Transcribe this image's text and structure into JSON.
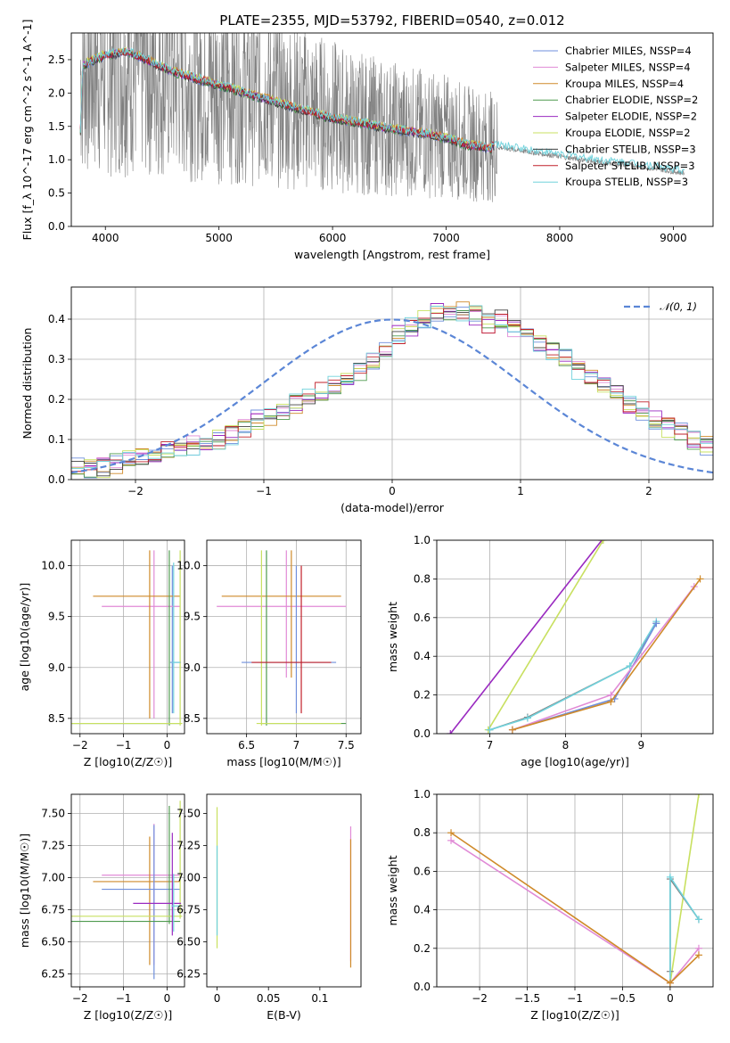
{
  "figure": {
    "title": "PLATE=2355, MJD=53792, FIBERID=0540, z=0.012"
  },
  "colors": {
    "observed": "#808080",
    "models": [
      "#6f8fdc",
      "#e08ad6",
      "#cf8a2a",
      "#4e9a4e",
      "#9a2ac0",
      "#c8e060",
      "#404040",
      "#c0202a",
      "#70d2dc"
    ],
    "normal": "#5b86d6"
  },
  "chart_data": [
    {
      "id": "spectrum",
      "type": "line",
      "xlabel": "wavelength [Angstrom, rest frame]",
      "ylabel": "Flux [f_λ 10^-17 erg cm^-2 s^-1 A^-1]",
      "xlim": [
        3700,
        9350
      ],
      "ylim": [
        0,
        2.9
      ],
      "xticks": [
        4000,
        5000,
        6000,
        7000,
        8000,
        9000
      ],
      "yticks": [
        0.0,
        0.5,
        1.0,
        1.5,
        2.0,
        2.5
      ],
      "observed_spectrum": {
        "color": "#808080",
        "x": [
          3780,
          4000,
          4200,
          4400,
          4600,
          4800,
          5000,
          5200,
          5400,
          5600,
          5800,
          6000,
          6200,
          6400,
          6600,
          6800,
          7000,
          7200,
          7400,
          7600,
          7800,
          8000,
          8200,
          8400,
          8600,
          8800,
          9000,
          9100
        ],
        "y": [
          2.3,
          2.4,
          2.45,
          2.35,
          2.25,
          2.2,
          2.1,
          2.05,
          1.95,
          1.85,
          1.75,
          1.65,
          1.55,
          1.5,
          1.45,
          1.4,
          1.35,
          1.25,
          1.2,
          1.15,
          1.1,
          1.05,
          1.0,
          0.95,
          0.92,
          0.88,
          0.82,
          0.8
        ]
      },
      "model_continuum": {
        "x": [
          3780,
          3800,
          4000,
          4200,
          4400,
          4600,
          4800,
          5000,
          5200,
          5400,
          5600,
          5800,
          6000,
          6200,
          6400,
          6600,
          6800,
          7000,
          7200,
          7400
        ],
        "y": [
          1.4,
          2.4,
          2.55,
          2.6,
          2.45,
          2.3,
          2.2,
          2.1,
          2.0,
          1.9,
          1.8,
          1.7,
          1.6,
          1.55,
          1.48,
          1.42,
          1.38,
          1.3,
          1.2,
          1.15
        ]
      },
      "legend": [
        {
          "name": "Chabrier MILES, N_SSP=4"
        },
        {
          "name": "Salpeter MILES, N_SSP=4"
        },
        {
          "name": "Kroupa MILES, N_SSP=4"
        },
        {
          "name": "Chabrier ELODIE, N_SSP=2"
        },
        {
          "name": "Salpeter ELODIE, N_SSP=2"
        },
        {
          "name": "Kroupa ELODIE, N_SSP=2"
        },
        {
          "name": "Chabrier STELIB, N_SSP=3"
        },
        {
          "name": "Salpeter STELIB, N_SSP=3"
        },
        {
          "name": "Kroupa STELIB, N_SSP=3"
        }
      ],
      "legend_position": "top-right",
      "grid": false
    },
    {
      "id": "residuals",
      "type": "histogram",
      "xlabel": "(data-model)/error",
      "ylabel": "Normed distribution",
      "xlim": [
        -2.5,
        2.5
      ],
      "ylim": [
        0,
        0.48
      ],
      "xticks": [
        -2,
        -1,
        0,
        1,
        2
      ],
      "yticks": [
        0.0,
        0.1,
        0.2,
        0.3,
        0.4
      ],
      "grid": true,
      "bin_width": 0.1,
      "bin_start": -2.5,
      "normal_curve": {
        "mu": 0,
        "sigma": 1,
        "label": "𝒩(0, 1)"
      },
      "legend_position": "top-right",
      "base_values": [
        0.03,
        0.025,
        0.03,
        0.04,
        0.05,
        0.055,
        0.06,
        0.07,
        0.075,
        0.085,
        0.09,
        0.1,
        0.11,
        0.13,
        0.15,
        0.16,
        0.17,
        0.19,
        0.21,
        0.22,
        0.235,
        0.25,
        0.27,
        0.3,
        0.33,
        0.36,
        0.38,
        0.4,
        0.42,
        0.41,
        0.42,
        0.41,
        0.39,
        0.4,
        0.38,
        0.36,
        0.34,
        0.32,
        0.3,
        0.27,
        0.25,
        0.23,
        0.21,
        0.19,
        0.17,
        0.15,
        0.13,
        0.12,
        0.1,
        0.085
      ]
    },
    {
      "id": "age-vs-Z",
      "type": "errorbar",
      "xlabel": "Z [log10(Z/Z☉)]",
      "ylabel": "age  [log10(age/yr)]",
      "xlim": [
        -2.2,
        0.4
      ],
      "ylim": [
        8.35,
        10.25
      ],
      "xticks": [
        -2,
        -1,
        0
      ],
      "yticks": [
        8.5,
        9.0,
        9.5,
        10.0
      ],
      "grid": true,
      "points": [
        {
          "x": 0.12,
          "y": 9.05,
          "xerr": [
            0.05,
            0.2
          ],
          "yerr": [
            0.5,
            0.95
          ],
          "color": "#6f8fdc"
        },
        {
          "x": -0.3,
          "y": 9.6,
          "xerr": [
            1.2,
            0.6
          ],
          "yerr": [
            1.1,
            0.55
          ],
          "color": "#e08ad6"
        },
        {
          "x": -0.4,
          "y": 9.7,
          "xerr": [
            1.3,
            0.7
          ],
          "yerr": [
            1.2,
            0.45
          ],
          "color": "#cf8a2a"
        },
        {
          "x": 0.05,
          "y": 8.45,
          "xerr": [
            2.3,
            0.25
          ],
          "yerr": [
            0.02,
            1.7
          ],
          "color": "#4e9a4e"
        },
        {
          "x": 0.3,
          "y": 8.45,
          "xerr": [
            2.5,
            0.05
          ],
          "yerr": [
            0.02,
            1.7
          ],
          "color": "#c8e060"
        },
        {
          "x": 0.15,
          "y": 9.05,
          "xerr": [
            0.05,
            0.15
          ],
          "yerr": [
            0.5,
            0.98
          ],
          "color": "#70d2dc"
        }
      ]
    },
    {
      "id": "age-vs-mass",
      "type": "errorbar",
      "xlabel": "mass [log10(M/M☉)]",
      "ylabel": "",
      "xlim": [
        6.1,
        7.65
      ],
      "ylim": [
        8.35,
        10.25
      ],
      "xticks": [
        6.5,
        7.0,
        7.5
      ],
      "yticks": [
        8.5,
        9.0,
        9.5,
        10.0
      ],
      "grid": true,
      "points": [
        {
          "x": 6.9,
          "y": 9.6,
          "xerr": [
            0.7,
            0.6
          ],
          "yerr": [
            0.7,
            0.55
          ],
          "color": "#e08ad6"
        },
        {
          "x": 6.95,
          "y": 9.7,
          "xerr": [
            0.7,
            0.5
          ],
          "yerr": [
            0.8,
            0.45
          ],
          "color": "#cf8a2a"
        },
        {
          "x": 7.0,
          "y": 9.05,
          "xerr": [
            0.55,
            0.4
          ],
          "yerr": [
            0.5,
            0.95
          ],
          "color": "#6f8fdc"
        },
        {
          "x": 6.7,
          "y": 8.45,
          "xerr": [
            0.05,
            0.8
          ],
          "yerr": [
            0.02,
            1.7
          ],
          "color": "#4e9a4e"
        },
        {
          "x": 6.65,
          "y": 8.45,
          "xerr": [
            0.05,
            0.8
          ],
          "yerr": [
            0.02,
            1.7
          ],
          "color": "#c8e060"
        },
        {
          "x": 7.05,
          "y": 9.05,
          "xerr": [
            0.5,
            0.3
          ],
          "yerr": [
            0.5,
            0.95
          ],
          "color": "#c0202a"
        }
      ]
    },
    {
      "id": "massweight-vs-age",
      "type": "line",
      "xlabel": "age  [log10(age/yr)]",
      "ylabel": "mass weight",
      "xlim": [
        6.3,
        9.95
      ],
      "ylim": [
        0,
        1.0
      ],
      "xticks": [
        7,
        8,
        9
      ],
      "yticks": [
        0.0,
        0.2,
        0.4,
        0.6,
        0.8,
        1.0
      ],
      "grid": true,
      "series": [
        {
          "color": "#9a2ac0",
          "x": [
            6.48,
            8.48
          ],
          "y": [
            0.0,
            1.0
          ]
        },
        {
          "color": "#c8e060",
          "x": [
            6.98,
            8.5
          ],
          "y": [
            0.02,
            1.0
          ]
        },
        {
          "color": "#808080",
          "x": [
            7.0,
            7.5,
            8.85,
            9.2
          ],
          "y": [
            0.02,
            0.085,
            0.35,
            0.57
          ]
        },
        {
          "color": "#70d2dc",
          "x": [
            7.0,
            7.5,
            8.85,
            9.2
          ],
          "y": [
            0.02,
            0.08,
            0.35,
            0.58
          ]
        },
        {
          "color": "#6f8fdc",
          "x": [
            7.3,
            8.65,
            9.2
          ],
          "y": [
            0.02,
            0.18,
            0.57
          ]
        },
        {
          "color": "#e08ad6",
          "x": [
            7.3,
            8.6,
            9.7
          ],
          "y": [
            0.02,
            0.2,
            0.76
          ]
        },
        {
          "color": "#cf8a2a",
          "x": [
            7.3,
            8.6,
            9.78
          ],
          "y": [
            0.02,
            0.165,
            0.8
          ]
        }
      ]
    },
    {
      "id": "mass-vs-Z",
      "type": "errorbar",
      "xlabel": "Z [log10(Z/Z☉)]",
      "ylabel": "mass [log10(M/M☉)]",
      "xlim": [
        -2.2,
        0.4
      ],
      "ylim": [
        6.15,
        7.65
      ],
      "xticks": [
        -2,
        -1,
        0
      ],
      "yticks": [
        6.25,
        6.5,
        6.75,
        7.0,
        7.25,
        7.5
      ],
      "grid": true,
      "points": [
        {
          "x": -0.3,
          "y": 7.02,
          "xerr": [
            1.2,
            0.6
          ],
          "yerr": [
            0.7,
            0.4
          ],
          "color": "#e08ad6"
        },
        {
          "x": -0.4,
          "y": 6.97,
          "xerr": [
            1.3,
            0.7
          ],
          "yerr": [
            0.65,
            0.35
          ],
          "color": "#cf8a2a"
        },
        {
          "x": -0.3,
          "y": 6.91,
          "xerr": [
            1.2,
            0.6
          ],
          "yerr": [
            0.7,
            0.5
          ],
          "color": "#6f8fdc"
        },
        {
          "x": 0.05,
          "y": 6.66,
          "xerr": [
            2.3,
            0.25
          ],
          "yerr": [
            0.02,
            0.9
          ],
          "color": "#4e9a4e"
        },
        {
          "x": 0.3,
          "y": 6.7,
          "xerr": [
            2.5,
            0.05
          ],
          "yerr": [
            0.02,
            0.9
          ],
          "color": "#c8e060"
        },
        {
          "x": 0.12,
          "y": 6.8,
          "xerr": [
            0.9,
            0.2
          ],
          "yerr": [
            0.25,
            0.55
          ],
          "color": "#9a2ac0"
        },
        {
          "x": 0.15,
          "y": 6.78,
          "xerr": [
            0.05,
            0.15
          ],
          "yerr": [
            0.2,
            0.25
          ],
          "color": "#70d2dc"
        }
      ]
    },
    {
      "id": "mass-vs-ebv",
      "type": "errorbar",
      "xlabel": "E(B-V)",
      "ylabel": "",
      "xlim": [
        -0.01,
        0.14
      ],
      "ylim": [
        6.15,
        7.65
      ],
      "xticks": [
        0.0,
        0.05,
        0.1
      ],
      "yticks": [
        6.25,
        6.5,
        6.75,
        7.0,
        7.25,
        7.5
      ],
      "grid": false,
      "points": [
        {
          "x": 0.0,
          "y": 7.0,
          "yerr": [
            0.55,
            0.55
          ],
          "color": "#c8e060"
        },
        {
          "x": 0.0,
          "y": 6.95,
          "yerr": [
            0.4,
            0.3
          ],
          "color": "#70d2dc"
        },
        {
          "x": 0.13,
          "y": 6.9,
          "yerr": [
            0.55,
            0.5
          ],
          "color": "#e08ad6"
        },
        {
          "x": 0.13,
          "y": 6.85,
          "yerr": [
            0.55,
            0.45
          ],
          "color": "#cf8a2a"
        }
      ]
    },
    {
      "id": "massweight-vs-Z",
      "type": "line",
      "xlabel": "Z [log10(Z/Z☉)]",
      "ylabel": "mass weight",
      "xlim": [
        -2.45,
        0.45
      ],
      "ylim": [
        0,
        1.0
      ],
      "xticks": [
        -2.0,
        -1.5,
        -1.0,
        -0.5,
        0.0
      ],
      "yticks": [
        0.0,
        0.2,
        0.4,
        0.6,
        0.8,
        1.0
      ],
      "grid": true,
      "series": [
        {
          "color": "#c8e060",
          "x": [
            0.0,
            0.3
          ],
          "y": [
            0.02,
            1.0
          ]
        },
        {
          "color": "#808080",
          "x": [
            0.0,
            0.0,
            0.3
          ],
          "y": [
            0.08,
            0.56,
            0.35
          ]
        },
        {
          "color": "#70d2dc",
          "x": [
            0.0,
            0.0,
            0.3
          ],
          "y": [
            0.02,
            0.57,
            0.35
          ]
        },
        {
          "color": "#e08ad6",
          "x": [
            -2.3,
            0.0,
            0.3
          ],
          "y": [
            0.76,
            0.02,
            0.2
          ]
        },
        {
          "color": "#cf8a2a",
          "x": [
            -2.3,
            0.0,
            0.3
          ],
          "y": [
            0.8,
            0.02,
            0.165
          ]
        }
      ]
    }
  ]
}
